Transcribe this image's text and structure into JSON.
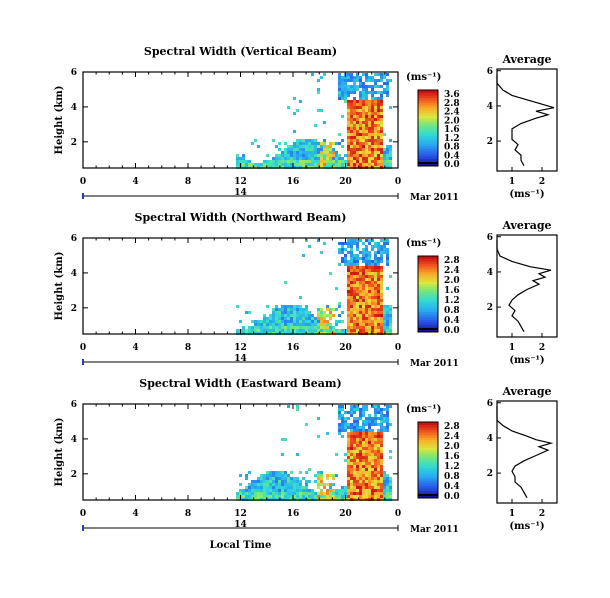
{
  "chart_data": [
    {
      "type": "heatmap",
      "title": "Spectral Width (Vertical Beam)",
      "ylabel": "Height (km)",
      "x_ticks": [
        "0",
        "4",
        "8",
        "12",
        "16",
        "20",
        "0"
      ],
      "y_ticks": [
        "2",
        "4",
        "6"
      ],
      "ylim": [
        0.5,
        6
      ],
      "date_day": "14",
      "date_label": "Mar 2011",
      "colorbar": {
        "unit": "(ms⁻¹)",
        "ticks": [
          "0.0",
          "0.4",
          "0.8",
          "1.2",
          "1.6",
          "2.0",
          "2.4",
          "2.8",
          "3.6"
        ]
      },
      "profile": {
        "title": "Average",
        "xlabel": "(ms⁻¹)",
        "x_ticks": [
          "1",
          "2"
        ],
        "y_ticks": [
          "2",
          "4",
          "6"
        ],
        "points": [
          [
            1.4,
            0.6
          ],
          [
            1.3,
            0.9
          ],
          [
            1.3,
            1.2
          ],
          [
            1.1,
            1.5
          ],
          [
            1.2,
            1.8
          ],
          [
            1.0,
            2.1
          ],
          [
            1.0,
            2.4
          ],
          [
            1.0,
            2.7
          ],
          [
            1.3,
            3.0
          ],
          [
            1.8,
            3.3
          ],
          [
            2.2,
            3.5
          ],
          [
            1.8,
            3.7
          ],
          [
            2.4,
            3.9
          ],
          [
            2.0,
            4.1
          ],
          [
            1.6,
            4.3
          ],
          [
            1.0,
            4.6
          ],
          [
            0.7,
            4.9
          ],
          [
            0.5,
            5.3
          ],
          [
            0.5,
            5.8
          ]
        ]
      }
    },
    {
      "type": "heatmap",
      "title": "Spectral Width (Northward Beam)",
      "ylabel": "Height (km)",
      "x_ticks": [
        "0",
        "4",
        "8",
        "12",
        "16",
        "20",
        "0"
      ],
      "y_ticks": [
        "2",
        "4",
        "6"
      ],
      "ylim": [
        0.5,
        6
      ],
      "date_day": "14",
      "date_label": "Mar 2011",
      "colorbar": {
        "unit": "(ms⁻¹)",
        "ticks": [
          "0.0",
          "0.4",
          "0.8",
          "1.2",
          "1.6",
          "2.0",
          "2.4",
          "2.8"
        ]
      },
      "profile": {
        "title": "Average",
        "xlabel": "(ms⁻¹)",
        "x_ticks": [
          "1",
          "2"
        ],
        "y_ticks": [
          "2",
          "4",
          "6"
        ],
        "points": [
          [
            1.4,
            0.6
          ],
          [
            1.3,
            0.9
          ],
          [
            1.2,
            1.2
          ],
          [
            1.0,
            1.5
          ],
          [
            1.1,
            1.8
          ],
          [
            0.9,
            2.1
          ],
          [
            1.0,
            2.4
          ],
          [
            1.2,
            2.7
          ],
          [
            1.5,
            3.0
          ],
          [
            1.9,
            3.3
          ],
          [
            1.7,
            3.5
          ],
          [
            2.1,
            3.7
          ],
          [
            1.9,
            3.9
          ],
          [
            2.3,
            4.1
          ],
          [
            1.6,
            4.3
          ],
          [
            1.0,
            4.6
          ],
          [
            0.6,
            4.9
          ],
          [
            0.5,
            5.3
          ],
          [
            0.5,
            5.8
          ]
        ]
      }
    },
    {
      "type": "heatmap",
      "title": "Spectral Width (Eastward Beam)",
      "ylabel": "Height (km)",
      "xlabel": "Local Time",
      "x_ticks": [
        "0",
        "4",
        "8",
        "12",
        "16",
        "20",
        "0"
      ],
      "y_ticks": [
        "2",
        "4",
        "6"
      ],
      "ylim": [
        0.5,
        6
      ],
      "date_day": "14",
      "date_label": "Mar 2011",
      "colorbar": {
        "unit": "(ms⁻¹)",
        "ticks": [
          "0.0",
          "0.4",
          "0.8",
          "1.2",
          "1.6",
          "2.0",
          "2.4",
          "2.8"
        ]
      },
      "profile": {
        "title": "Average",
        "xlabel": "(ms⁻¹)",
        "x_ticks": [
          "1",
          "2"
        ],
        "y_ticks": [
          "2",
          "4",
          "6"
        ],
        "points": [
          [
            1.5,
            0.6
          ],
          [
            1.4,
            0.9
          ],
          [
            1.3,
            1.2
          ],
          [
            1.1,
            1.5
          ],
          [
            1.1,
            1.8
          ],
          [
            1.0,
            2.1
          ],
          [
            1.1,
            2.4
          ],
          [
            1.4,
            2.7
          ],
          [
            1.8,
            3.0
          ],
          [
            2.2,
            3.3
          ],
          [
            1.9,
            3.5
          ],
          [
            2.3,
            3.7
          ],
          [
            1.8,
            3.9
          ],
          [
            1.5,
            4.1
          ],
          [
            1.0,
            4.4
          ],
          [
            0.7,
            4.7
          ],
          [
            0.5,
            5.0
          ],
          [
            0.5,
            5.5
          ],
          [
            0.5,
            5.8
          ]
        ]
      }
    }
  ]
}
